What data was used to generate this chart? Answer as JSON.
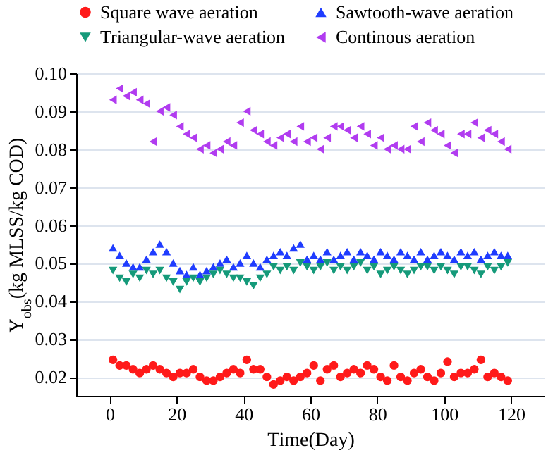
{
  "chart_data": {
    "type": "scatter",
    "xlabel": "Time(Day)",
    "ylabel": "Y$_{obs}$(kg MLSS/kg COD)",
    "x": [
      1,
      3,
      5,
      7,
      9,
      11,
      13,
      15,
      17,
      19,
      21,
      23,
      25,
      27,
      29,
      31,
      33,
      35,
      37,
      39,
      41,
      43,
      45,
      47,
      49,
      51,
      53,
      55,
      57,
      59,
      61,
      63,
      65,
      67,
      69,
      71,
      73,
      75,
      77,
      79,
      81,
      83,
      85,
      87,
      89,
      91,
      93,
      95,
      97,
      99,
      101,
      103,
      105,
      107,
      109,
      111,
      113,
      115,
      117,
      119
    ],
    "xlim": [
      -10,
      130
    ],
    "xticks": [
      0,
      20,
      40,
      60,
      80,
      100,
      120
    ],
    "ylim": [
      0.015,
      0.1
    ],
    "yticks": [
      {
        "value": 0.02,
        "label": "0.02"
      },
      {
        "value": 0.03,
        "label": "0.03"
      },
      {
        "value": 0.04,
        "label": "0.04"
      },
      {
        "value": 0.05,
        "label": "0.05"
      },
      {
        "value": 0.06,
        "label": "0.06"
      },
      {
        "value": 0.07,
        "label": "0.07"
      },
      {
        "value": 0.08,
        "label": "0.08"
      },
      {
        "value": 0.09,
        "label": "0.09"
      },
      {
        "value": 0.1,
        "label": "0.10"
      }
    ],
    "grid": "y",
    "legend": "top",
    "series": [
      {
        "name": "Square wave aeration",
        "color": "#ff1a1a",
        "marker": "circle",
        "values": [
          0.0245,
          0.023,
          0.023,
          0.022,
          0.021,
          0.022,
          0.023,
          0.022,
          0.021,
          0.02,
          0.021,
          0.021,
          0.022,
          0.02,
          0.019,
          0.019,
          0.02,
          0.021,
          0.022,
          0.021,
          0.0245,
          0.022,
          0.022,
          0.02,
          0.018,
          0.019,
          0.02,
          0.019,
          0.02,
          0.021,
          0.023,
          0.019,
          0.022,
          0.023,
          0.02,
          0.021,
          0.022,
          0.021,
          0.023,
          0.022,
          0.02,
          0.019,
          0.023,
          0.02,
          0.019,
          0.021,
          0.022,
          0.02,
          0.019,
          0.021,
          0.024,
          0.02,
          0.021,
          0.021,
          0.022,
          0.0245,
          0.02,
          0.021,
          0.02,
          0.019
        ]
      },
      {
        "name": "Sawtooth-wave aeration",
        "color": "#1f3cff",
        "marker": "triangle-up",
        "values": [
          0.054,
          0.052,
          0.05,
          0.049,
          0.049,
          0.051,
          0.053,
          0.055,
          0.053,
          0.05,
          0.048,
          0.047,
          0.049,
          0.047,
          0.048,
          0.049,
          0.05,
          0.051,
          0.049,
          0.05,
          0.052,
          0.05,
          0.049,
          0.051,
          0.052,
          0.053,
          0.052,
          0.054,
          0.055,
          0.051,
          0.052,
          0.051,
          0.053,
          0.051,
          0.052,
          0.053,
          0.051,
          0.053,
          0.052,
          0.051,
          0.053,
          0.052,
          0.051,
          0.053,
          0.052,
          0.051,
          0.053,
          0.051,
          0.052,
          0.053,
          0.052,
          0.051,
          0.053,
          0.052,
          0.053,
          0.051,
          0.052,
          0.053,
          0.052,
          0.052
        ]
      },
      {
        "name": "Triangular-wave aeration",
        "color": "#159a7a",
        "marker": "triangle-down",
        "values": [
          0.048,
          0.046,
          0.045,
          0.047,
          0.046,
          0.048,
          0.047,
          0.048,
          0.046,
          0.045,
          0.043,
          0.045,
          0.046,
          0.045,
          0.046,
          0.047,
          0.048,
          0.047,
          0.046,
          0.046,
          0.045,
          0.044,
          0.046,
          0.047,
          0.049,
          0.048,
          0.049,
          0.048,
          0.05,
          0.049,
          0.048,
          0.049,
          0.05,
          0.048,
          0.049,
          0.048,
          0.049,
          0.05,
          0.048,
          0.049,
          0.047,
          0.048,
          0.049,
          0.048,
          0.047,
          0.048,
          0.049,
          0.049,
          0.048,
          0.049,
          0.048,
          0.047,
          0.049,
          0.049,
          0.048,
          0.047,
          0.049,
          0.048,
          0.049,
          0.05
        ]
      },
      {
        "name": "Continous aeration",
        "color": "#b13cf0",
        "marker": "triangle-left",
        "values": [
          0.093,
          0.096,
          0.094,
          0.095,
          0.093,
          0.092,
          0.082,
          0.09,
          0.091,
          0.089,
          0.086,
          0.084,
          0.083,
          0.08,
          0.081,
          0.079,
          0.08,
          0.082,
          0.081,
          0.087,
          0.09,
          0.085,
          0.084,
          0.082,
          0.081,
          0.083,
          0.084,
          0.082,
          0.086,
          0.082,
          0.083,
          0.08,
          0.083,
          0.086,
          0.086,
          0.085,
          0.083,
          0.086,
          0.084,
          0.081,
          0.083,
          0.08,
          0.081,
          0.08,
          0.08,
          0.086,
          0.082,
          0.087,
          0.085,
          0.084,
          0.081,
          0.079,
          0.084,
          0.084,
          0.087,
          0.083,
          0.085,
          0.084,
          0.082,
          0.08
        ]
      }
    ]
  }
}
